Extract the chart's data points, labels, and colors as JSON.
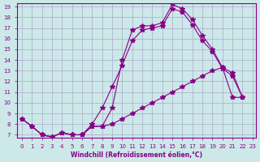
{
  "xlabel": "Windchill (Refroidissement éolien,°C)",
  "bg_color": "#cce8e8",
  "line_color": "#880088",
  "grid_color": "#aaaacc",
  "xlim": [
    -0.5,
    23.3
  ],
  "ylim": [
    6.7,
    19.3
  ],
  "xticks": [
    0,
    1,
    2,
    3,
    4,
    5,
    6,
    7,
    8,
    9,
    10,
    11,
    12,
    13,
    14,
    15,
    16,
    17,
    18,
    19,
    20,
    21,
    22,
    23
  ],
  "yticks": [
    7,
    8,
    9,
    10,
    11,
    12,
    13,
    14,
    15,
    16,
    17,
    18,
    19
  ],
  "line1_x": [
    0,
    1,
    2,
    3,
    4,
    5,
    6,
    7,
    8,
    9,
    10,
    11,
    12,
    13,
    14,
    15,
    16,
    17,
    18,
    19,
    20,
    21,
    22
  ],
  "line1_y": [
    8.5,
    7.8,
    7.0,
    6.8,
    7.2,
    7.0,
    7.0,
    7.8,
    7.8,
    9.5,
    14.0,
    16.8,
    17.2,
    17.2,
    17.5,
    19.2,
    18.8,
    17.8,
    16.3,
    15.0,
    13.3,
    12.8,
    10.5
  ],
  "line2_x": [
    0,
    1,
    2,
    3,
    4,
    5,
    6,
    7,
    8,
    9,
    10,
    11,
    12,
    13,
    14,
    15,
    16,
    17,
    18,
    19,
    20,
    21,
    22
  ],
  "line2_y": [
    8.5,
    7.8,
    7.0,
    6.8,
    7.2,
    7.0,
    7.0,
    8.0,
    9.5,
    11.5,
    13.5,
    15.8,
    16.8,
    17.0,
    17.2,
    18.8,
    18.5,
    17.3,
    15.8,
    14.8,
    13.2,
    12.5,
    10.5
  ],
  "line3_x": [
    0,
    1,
    2,
    3,
    4,
    5,
    6,
    7,
    8,
    9,
    10,
    11,
    12,
    13,
    14,
    15,
    16,
    17,
    18,
    19,
    20,
    21,
    22
  ],
  "line3_y": [
    8.5,
    7.8,
    7.0,
    6.8,
    7.2,
    7.0,
    7.0,
    7.8,
    7.8,
    8.0,
    8.5,
    9.0,
    9.5,
    10.0,
    10.5,
    11.0,
    11.5,
    12.0,
    12.5,
    13.0,
    13.3,
    10.5,
    10.5
  ]
}
